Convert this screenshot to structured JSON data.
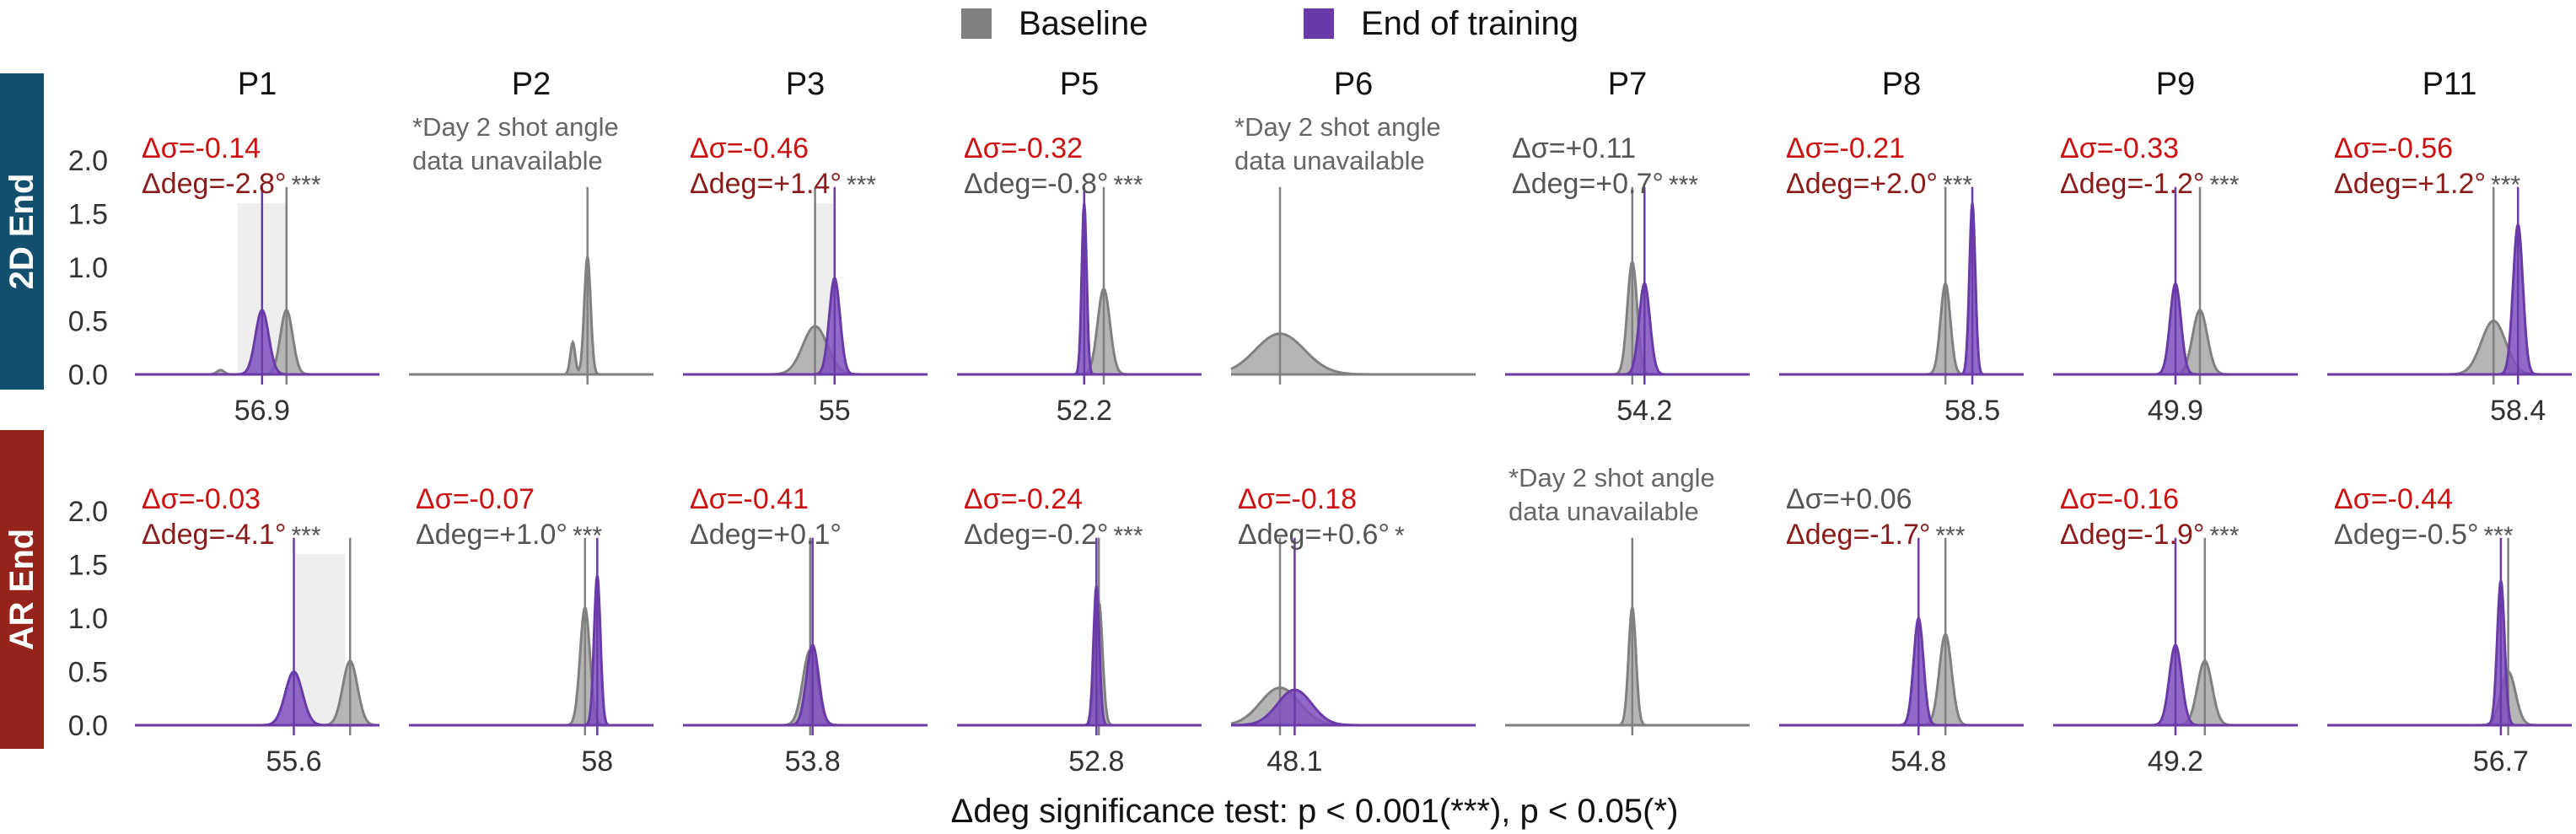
{
  "legend": [
    {
      "label": "Baseline",
      "color": "#808080"
    },
    {
      "label": "End of training",
      "color": "#6a3aa8"
    }
  ],
  "xlabel": "Δdeg significance test: p < 0.001(***), p < 0.05(*)",
  "rows": [
    {
      "label": "2D End",
      "color": "#12506e"
    },
    {
      "label": "AR End",
      "color": "#97231d"
    }
  ],
  "columns": [
    "P1",
    "P2",
    "P3",
    "P5",
    "P6",
    "P7",
    "P8",
    "P9",
    "P11"
  ],
  "yaxis": {
    "ticks": [
      "2.0",
      "1.5",
      "1.0",
      "0.5",
      "0.0"
    ],
    "range": [
      0,
      2.0
    ]
  },
  "colors": {
    "baseline": "#808080",
    "training": "#6a3aa8",
    "significant": "#cc1111",
    "nonsignificant": "#555555",
    "na_text": "#666666",
    "band": "#eeeeee"
  },
  "chart_data": [
    {
      "row": "2D End",
      "col": "P1",
      "type": "density",
      "unavailable": false,
      "dsigma": {
        "text": "Δσ=-0.14",
        "sig": true
      },
      "ddeg": {
        "text": "Δdeg=-2.8°",
        "sig": true
      },
      "stars": "***",
      "xlabel": "56.9",
      "band": [
        0.42,
        0.62
      ],
      "baseline": {
        "mean": 0.62,
        "sd": 0.025,
        "peak": 0.6
      },
      "training": {
        "mean": 0.52,
        "sd": 0.027,
        "peak": 0.6,
        "line": 0.52
      },
      "extra": [
        {
          "mean": 0.35,
          "sd": 0.015,
          "peak": 0.04
        }
      ]
    },
    {
      "row": "2D End",
      "col": "P2",
      "type": "density",
      "unavailable": true,
      "na_text": [
        "*Day 2 shot angle",
        "data unavailable"
      ],
      "xlabel": "",
      "baseline": {
        "mean": 0.73,
        "sd": 0.013,
        "peak": 1.1
      },
      "extra": [
        {
          "mean": 0.67,
          "sd": 0.01,
          "peak": 0.3
        }
      ]
    },
    {
      "row": "2D End",
      "col": "P3",
      "type": "density",
      "unavailable": false,
      "dsigma": {
        "text": "Δσ=-0.46",
        "sig": true
      },
      "ddeg": {
        "text": "Δdeg=+1.4°",
        "sig": true
      },
      "stars": "***",
      "xlabel": "55",
      "band": [
        0.54,
        0.62
      ],
      "baseline": {
        "mean": 0.54,
        "sd": 0.05,
        "peak": 0.45
      },
      "training": {
        "mean": 0.62,
        "sd": 0.022,
        "peak": 0.9,
        "line": 0.62
      }
    },
    {
      "row": "2D End",
      "col": "P5",
      "type": "density",
      "unavailable": false,
      "dsigma": {
        "text": "Δσ=-0.32",
        "sig": true
      },
      "ddeg": {
        "text": "Δdeg=-0.8°",
        "sig": false
      },
      "stars": "***",
      "xlabel": "52.2",
      "baseline": {
        "mean": 0.6,
        "sd": 0.025,
        "peak": 0.8
      },
      "training": {
        "mean": 0.52,
        "sd": 0.01,
        "peak": 1.6,
        "line": 0.52
      }
    },
    {
      "row": "2D End",
      "col": "P6",
      "type": "density",
      "unavailable": true,
      "na_text": [
        "*Day 2 shot angle",
        "data unavailable"
      ],
      "xlabel": "",
      "baseline": {
        "mean": 0.2,
        "sd": 0.1,
        "peak": 0.38
      }
    },
    {
      "row": "2D End",
      "col": "P7",
      "type": "density",
      "unavailable": false,
      "dsigma": {
        "text": "Δσ=+0.11",
        "sig": false
      },
      "ddeg": {
        "text": "Δdeg=+0.7°",
        "sig": false
      },
      "stars": "***",
      "xlabel": "54.2",
      "baseline": {
        "mean": 0.52,
        "sd": 0.02,
        "peak": 1.05
      },
      "training": {
        "mean": 0.57,
        "sd": 0.022,
        "peak": 0.85,
        "line": 0.57
      }
    },
    {
      "row": "2D End",
      "col": "P8",
      "type": "density",
      "unavailable": false,
      "dsigma": {
        "text": "Δσ=-0.21",
        "sig": true
      },
      "ddeg": {
        "text": "Δdeg=+2.0°",
        "sig": true
      },
      "stars": "***",
      "xlabel": "58.5",
      "baseline": {
        "mean": 0.68,
        "sd": 0.02,
        "peak": 0.85
      },
      "training": {
        "mean": 0.79,
        "sd": 0.012,
        "peak": 1.6,
        "line": 0.79
      }
    },
    {
      "row": "2D End",
      "col": "P9",
      "type": "density",
      "unavailable": false,
      "dsigma": {
        "text": "Δσ=-0.33",
        "sig": true
      },
      "ddeg": {
        "text": "Δdeg=-1.2°",
        "sig": true
      },
      "stars": "***",
      "xlabel": "49.9",
      "baseline": {
        "mean": 0.6,
        "sd": 0.03,
        "peak": 0.6
      },
      "training": {
        "mean": 0.5,
        "sd": 0.022,
        "peak": 0.85,
        "line": 0.5
      }
    },
    {
      "row": "2D End",
      "col": "P11",
      "type": "density",
      "unavailable": false,
      "dsigma": {
        "text": "Δσ=-0.56",
        "sig": true
      },
      "ddeg": {
        "text": "Δdeg=+1.2°",
        "sig": true
      },
      "stars": "***",
      "xlabel": "58.4",
      "baseline": {
        "mean": 0.68,
        "sd": 0.05,
        "peak": 0.5
      },
      "training": {
        "mean": 0.78,
        "sd": 0.02,
        "peak": 1.4,
        "line": 0.78
      }
    },
    {
      "row": "AR End",
      "col": "P1",
      "type": "density",
      "unavailable": false,
      "dsigma": {
        "text": "Δσ=-0.03",
        "sig": true
      },
      "ddeg": {
        "text": "Δdeg=-4.1°",
        "sig": true
      },
      "stars": "***",
      "xlabel": "55.6",
      "band": [
        0.65,
        0.86
      ],
      "baseline": {
        "mean": 0.88,
        "sd": 0.03,
        "peak": 0.6
      },
      "training": {
        "mean": 0.65,
        "sd": 0.035,
        "peak": 0.5,
        "line": 0.65
      }
    },
    {
      "row": "AR End",
      "col": "P2",
      "type": "density",
      "unavailable": false,
      "dsigma": {
        "text": "Δσ=-0.07",
        "sig": true
      },
      "ddeg": {
        "text": "Δdeg=+1.0°",
        "sig": false
      },
      "stars": "***",
      "xlabel": "58",
      "baseline": {
        "mean": 0.72,
        "sd": 0.02,
        "peak": 1.1
      },
      "training": {
        "mean": 0.77,
        "sd": 0.013,
        "peak": 1.4,
        "line": 0.77
      }
    },
    {
      "row": "AR End",
      "col": "P3",
      "type": "density",
      "unavailable": false,
      "dsigma": {
        "text": "Δσ=-0.41",
        "sig": true
      },
      "ddeg": {
        "text": "Δdeg=+0.1°",
        "sig": false
      },
      "stars": "",
      "xlabel": "53.8",
      "baseline": {
        "mean": 0.52,
        "sd": 0.03,
        "peak": 0.7
      },
      "training": {
        "mean": 0.53,
        "sd": 0.025,
        "peak": 0.75,
        "line": 0.53
      }
    },
    {
      "row": "AR End",
      "col": "P5",
      "type": "density",
      "unavailable": false,
      "dsigma": {
        "text": "Δσ=-0.24",
        "sig": true
      },
      "ddeg": {
        "text": "Δdeg=-0.2°",
        "sig": false
      },
      "stars": "***",
      "xlabel": "52.8",
      "baseline": {
        "mean": 0.58,
        "sd": 0.015,
        "peak": 1.15
      },
      "training": {
        "mean": 0.57,
        "sd": 0.012,
        "peak": 1.3,
        "line": 0.57
      }
    },
    {
      "row": "AR End",
      "col": "P6",
      "type": "density",
      "unavailable": false,
      "dsigma": {
        "text": "Δσ=-0.18",
        "sig": true
      },
      "ddeg": {
        "text": "Δdeg=+0.6°",
        "sig": false
      },
      "stars": "*",
      "xlabel": "48.1",
      "baseline": {
        "mean": 0.2,
        "sd": 0.08,
        "peak": 0.35
      },
      "training": {
        "mean": 0.26,
        "sd": 0.07,
        "peak": 0.33,
        "line": 0.26
      }
    },
    {
      "row": "AR End",
      "col": "P7",
      "type": "density",
      "unavailable": true,
      "na_text": [
        "*Day 2 shot angle",
        "data unavailable"
      ],
      "xlabel": "",
      "baseline": {
        "mean": 0.52,
        "sd": 0.015,
        "peak": 1.1
      }
    },
    {
      "row": "AR End",
      "col": "P8",
      "type": "density",
      "unavailable": false,
      "dsigma": {
        "text": "Δσ=+0.06",
        "sig": false
      },
      "ddeg": {
        "text": "Δdeg=-1.7°",
        "sig": true
      },
      "stars": "***",
      "xlabel": "54.8",
      "baseline": {
        "mean": 0.68,
        "sd": 0.025,
        "peak": 0.85
      },
      "training": {
        "mean": 0.57,
        "sd": 0.02,
        "peak": 1.0,
        "line": 0.57
      }
    },
    {
      "row": "AR End",
      "col": "P9",
      "type": "density",
      "unavailable": false,
      "dsigma": {
        "text": "Δσ=-0.16",
        "sig": true
      },
      "ddeg": {
        "text": "Δdeg=-1.9°",
        "sig": true
      },
      "stars": "***",
      "xlabel": "49.2",
      "baseline": {
        "mean": 0.62,
        "sd": 0.03,
        "peak": 0.6
      },
      "training": {
        "mean": 0.5,
        "sd": 0.025,
        "peak": 0.75,
        "line": 0.5
      }
    },
    {
      "row": "AR End",
      "col": "P11",
      "type": "density",
      "unavailable": false,
      "dsigma": {
        "text": "Δσ=-0.44",
        "sig": true
      },
      "ddeg": {
        "text": "Δdeg=-0.5°",
        "sig": false
      },
      "stars": "***",
      "xlabel": "56.7",
      "baseline": {
        "mean": 0.74,
        "sd": 0.03,
        "peak": 0.5
      },
      "training": {
        "mean": 0.71,
        "sd": 0.015,
        "peak": 1.35,
        "line": 0.71
      }
    }
  ]
}
